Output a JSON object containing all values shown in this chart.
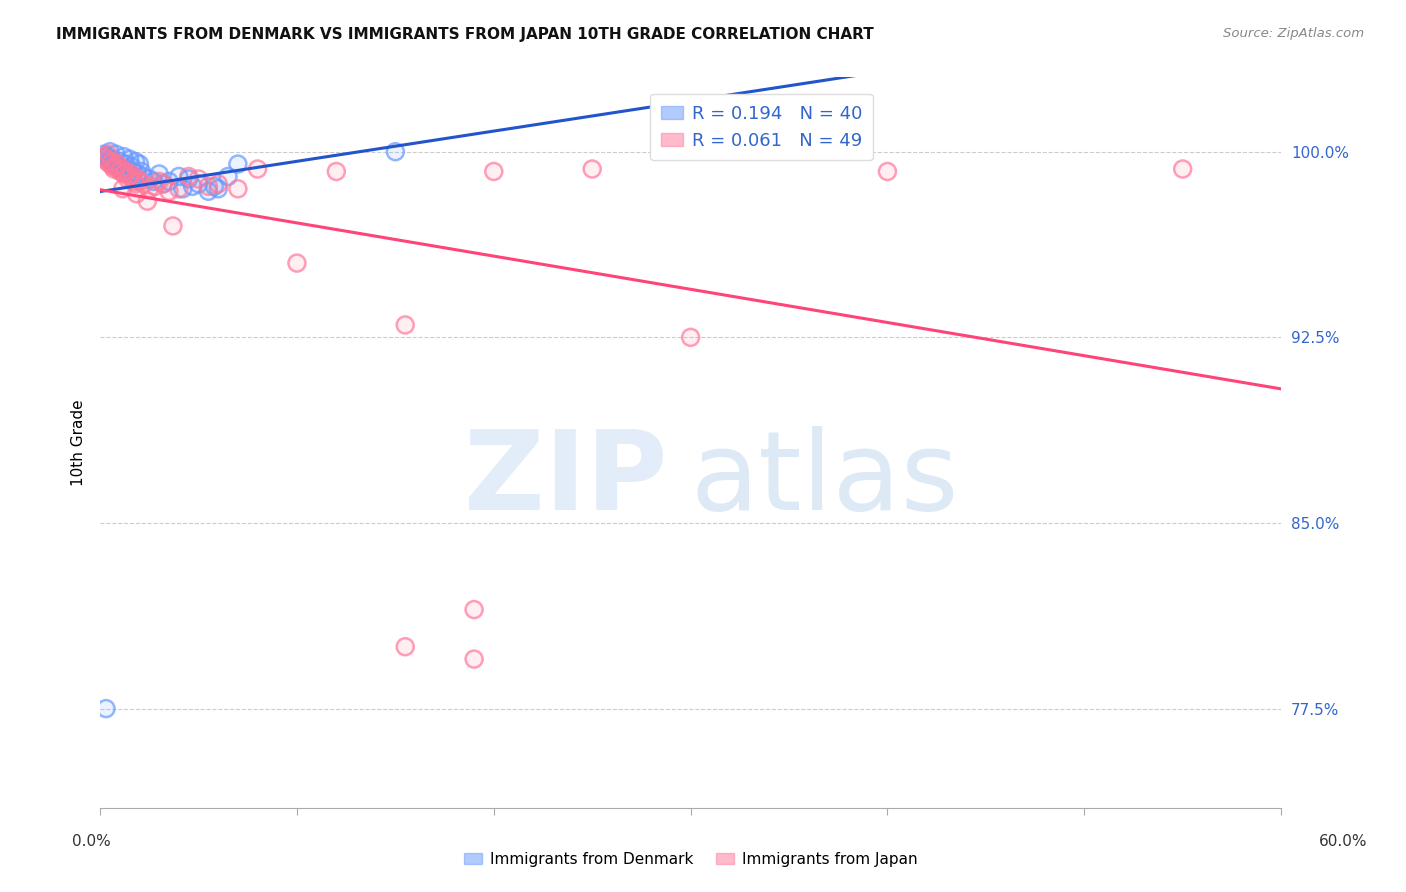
{
  "title": "IMMIGRANTS FROM DENMARK VS IMMIGRANTS FROM JAPAN 10TH GRADE CORRELATION CHART",
  "source": "Source: ZipAtlas.com",
  "ylabel": "10th Grade",
  "yticks": [
    77.5,
    85.0,
    92.5,
    100.0
  ],
  "ytick_labels": [
    "77.5%",
    "85.0%",
    "92.5%",
    "100.0%"
  ],
  "xlim": [
    0.0,
    60.0
  ],
  "ylim": [
    73.5,
    103.0
  ],
  "r_denmark": 0.194,
  "n_denmark": 40,
  "r_japan": 0.061,
  "n_japan": 49,
  "denmark_color": "#6699ff",
  "japan_color": "#ff7799",
  "denmark_line_color": "#2255cc",
  "japan_line_color": "#ff4477",
  "legend_label_denmark": "Immigrants from Denmark",
  "legend_label_japan": "Immigrants from Japan",
  "denmark_x": [
    0.2,
    0.3,
    0.4,
    0.5,
    0.5,
    0.6,
    0.7,
    0.8,
    0.9,
    1.0,
    1.1,
    1.2,
    1.3,
    1.4,
    1.5,
    1.6,
    1.7,
    1.8,
    1.9,
    2.0,
    2.1,
    2.2,
    2.5,
    2.7,
    3.0,
    3.2,
    3.5,
    4.0,
    4.2,
    4.5,
    4.7,
    5.0,
    5.5,
    5.8,
    6.0,
    6.5,
    7.0,
    15.0,
    0.35,
    0.3
  ],
  "denmark_y": [
    99.9,
    99.8,
    99.7,
    100.0,
    99.6,
    99.7,
    99.5,
    99.9,
    99.4,
    99.6,
    99.3,
    99.8,
    99.5,
    99.3,
    99.7,
    99.4,
    99.2,
    99.6,
    99.1,
    99.5,
    99.2,
    99.0,
    98.9,
    98.8,
    99.1,
    98.7,
    98.8,
    99.0,
    98.5,
    98.9,
    98.6,
    98.7,
    98.4,
    98.6,
    98.5,
    99.0,
    99.5,
    100.0,
    99.8,
    77.5
  ],
  "japan_x": [
    0.2,
    0.3,
    0.4,
    0.5,
    0.6,
    0.7,
    0.8,
    0.9,
    1.0,
    1.1,
    1.2,
    1.3,
    1.4,
    1.5,
    1.6,
    1.7,
    1.8,
    1.9,
    2.0,
    2.2,
    2.5,
    2.8,
    3.0,
    3.2,
    3.5,
    4.0,
    4.5,
    5.0,
    5.5,
    6.0,
    7.0,
    8.0,
    10.0,
    12.0,
    15.5,
    19.0,
    20.0,
    25.0,
    30.0,
    40.0,
    55.0,
    0.35,
    0.65,
    1.15,
    1.85,
    2.4,
    3.7,
    15.5,
    19.0
  ],
  "japan_y": [
    99.8,
    99.7,
    99.9,
    99.5,
    99.6,
    99.3,
    99.4,
    99.5,
    99.2,
    99.3,
    99.1,
    99.2,
    98.9,
    99.0,
    99.1,
    98.8,
    98.7,
    98.9,
    98.8,
    98.7,
    98.5,
    98.6,
    98.8,
    98.7,
    98.4,
    98.5,
    99.0,
    98.9,
    98.6,
    98.7,
    98.5,
    99.3,
    95.5,
    99.2,
    80.0,
    81.5,
    99.2,
    99.3,
    92.5,
    99.2,
    99.3,
    99.6,
    99.4,
    98.5,
    98.3,
    98.0,
    97.0,
    93.0,
    79.5
  ]
}
